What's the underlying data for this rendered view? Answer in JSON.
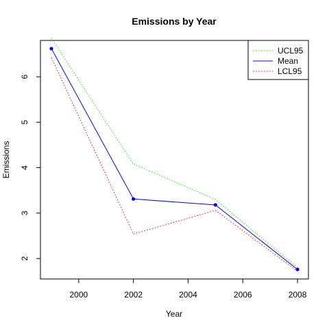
{
  "chart_data": {
    "type": "line",
    "title": "Emissions by Year",
    "xlabel": "Year",
    "ylabel": "Emissions",
    "x": [
      1999,
      2002,
      2005,
      2008
    ],
    "xlim": [
      1998.6,
      2008.4
    ],
    "ylim": [
      1.55,
      6.8
    ],
    "xticks": [
      "2000",
      "2002",
      "2004",
      "2006",
      "2008"
    ],
    "yticks": [
      "2",
      "3",
      "4",
      "5",
      "6"
    ],
    "grid": false,
    "legend_position": "top-right",
    "series": [
      {
        "name": "UCL95",
        "values": [
          6.85,
          4.08,
          3.3,
          1.8
        ],
        "color": "#00ee00",
        "style": "dotted",
        "markers": false
      },
      {
        "name": "Mean",
        "values": [
          6.62,
          3.31,
          3.18,
          1.76
        ],
        "color": "#0000ff",
        "style": "solid",
        "markers": true
      },
      {
        "name": "LCL95",
        "values": [
          6.42,
          2.54,
          3.06,
          1.72
        ],
        "color": "#ff0000",
        "style": "dotted",
        "markers": false
      }
    ]
  }
}
